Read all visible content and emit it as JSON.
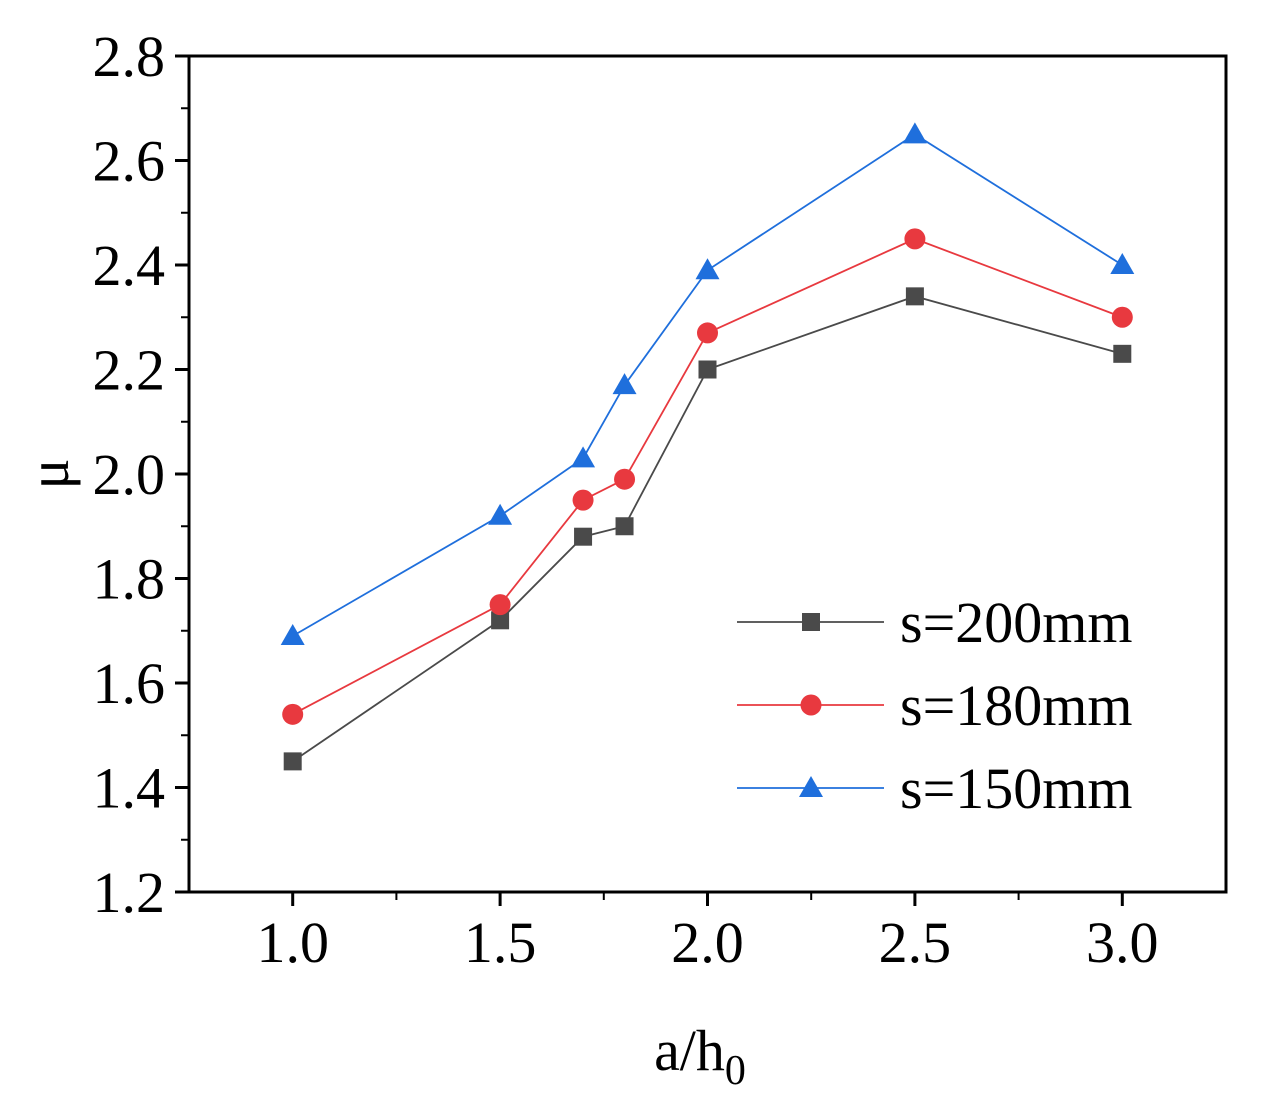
{
  "chart_data": {
    "type": "line",
    "xlabel": "a/h",
    "xlabel_subscript": "0",
    "ylabel": "μ",
    "xlim": [
      0.75,
      3.25
    ],
    "ylim": [
      1.2,
      2.8
    ],
    "xticks": [
      1.0,
      1.5,
      2.0,
      2.5,
      3.0
    ],
    "xtick_labels": [
      "1.0",
      "1.5",
      "2.0",
      "2.5",
      "3.0"
    ],
    "yticks": [
      1.2,
      1.4,
      1.6,
      1.8,
      2.0,
      2.2,
      2.4,
      2.6,
      2.8
    ],
    "ytick_labels": [
      "1.2",
      "1.4",
      "1.6",
      "1.8",
      "2.0",
      "2.2",
      "2.4",
      "2.6",
      "2.8"
    ],
    "legend_position": "bottom-right",
    "series": [
      {
        "name": "s=200mm",
        "marker": "square",
        "color": "#4a4a4a",
        "x": [
          1.0,
          1.5,
          1.7,
          1.8,
          2.0,
          2.5,
          3.0
        ],
        "y": [
          1.45,
          1.72,
          1.88,
          1.9,
          2.2,
          2.34,
          2.23
        ]
      },
      {
        "name": "s=180mm",
        "marker": "circle",
        "color": "#e8393f",
        "x": [
          1.0,
          1.5,
          1.7,
          1.8,
          2.0,
          2.5,
          3.0
        ],
        "y": [
          1.54,
          1.75,
          1.95,
          1.99,
          2.27,
          2.45,
          2.3
        ]
      },
      {
        "name": "s=150mm",
        "marker": "triangle",
        "color": "#1f6fdc",
        "x": [
          1.0,
          1.5,
          1.7,
          1.8,
          2.0,
          2.5,
          3.0
        ],
        "y": [
          1.69,
          1.92,
          2.03,
          2.17,
          2.39,
          2.65,
          2.4
        ]
      }
    ]
  }
}
